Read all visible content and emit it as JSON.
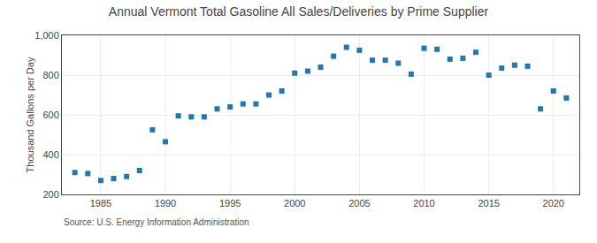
{
  "chart_data": {
    "type": "scatter",
    "title": "Annual Vermont Total Gasoline All Sales/Deliveries by Prime Supplier",
    "ylabel": "Thousand Gallons per Day",
    "source": "Source: U.S. Energy Information Administration",
    "marker": "square",
    "x": [
      1983,
      1984,
      1985,
      1986,
      1987,
      1988,
      1989,
      1990,
      1991,
      1992,
      1993,
      1994,
      1995,
      1996,
      1997,
      1998,
      1999,
      2000,
      2001,
      2002,
      2003,
      2004,
      2005,
      2006,
      2007,
      2008,
      2009,
      2010,
      2011,
      2012,
      2013,
      2014,
      2015,
      2016,
      2017,
      2018,
      2019,
      2020,
      2021
    ],
    "values": [
      310,
      305,
      270,
      280,
      290,
      320,
      525,
      465,
      595,
      590,
      590,
      630,
      640,
      655,
      655,
      700,
      720,
      810,
      820,
      840,
      895,
      940,
      925,
      875,
      875,
      860,
      805,
      935,
      930,
      880,
      885,
      915,
      800,
      835,
      850,
      845,
      630,
      720,
      685
    ],
    "xlim": [
      1982,
      2022
    ],
    "xticks": [
      1985,
      1990,
      1995,
      2000,
      2005,
      2010,
      2015,
      2020
    ],
    "ylim": [
      200,
      1000
    ],
    "yticks": [
      200,
      400,
      600,
      800,
      {
        "value": 1000,
        "label": "1,000"
      }
    ],
    "grid": true
  }
}
